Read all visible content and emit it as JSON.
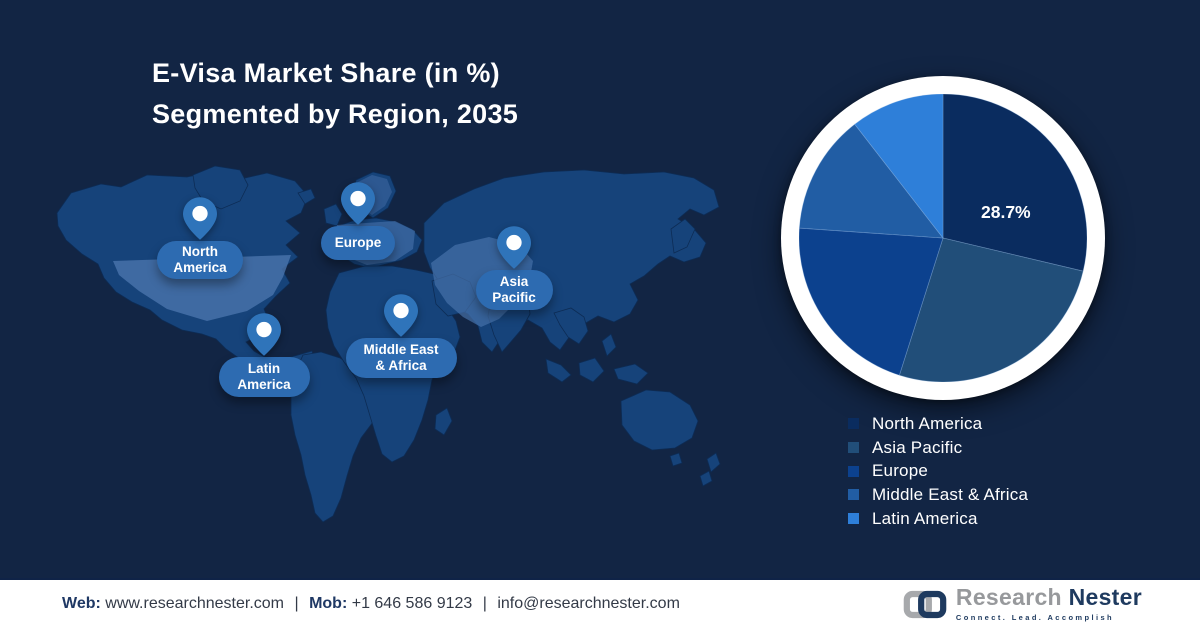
{
  "title": {
    "line1": "E-Visa Market Share (in %)",
    "line2": "Segmented by Region, 2035"
  },
  "map": {
    "pins": [
      {
        "id": "north-america",
        "label": "North\nAmerica"
      },
      {
        "id": "europe",
        "label": "Europe"
      },
      {
        "id": "asia-pacific",
        "label": "Asia\nPacific"
      },
      {
        "id": "latin-america",
        "label": "Latin\nAmerica"
      },
      {
        "id": "middle-east-africa",
        "label": "Middle East\n& Africa"
      }
    ]
  },
  "chart_data": {
    "type": "pie",
    "title": "E-Visa Market Share (in %) Segmented by Region, 2035",
    "start_angle_deg": 0,
    "direction": "clockwise",
    "legend_position": "bottom-right",
    "data_label": {
      "slice": "North America",
      "text": "28.7%"
    },
    "slices": [
      {
        "name": "North America",
        "value": 28.7,
        "color": "#0a2c5f",
        "labeled": true
      },
      {
        "name": "Asia Pacific",
        "value": 26.2,
        "color": "#214e79",
        "labeled": false
      },
      {
        "name": "Europe",
        "value": 21.2,
        "color": "#0c418e",
        "labeled": false
      },
      {
        "name": "Middle East & Africa",
        "value": 13.4,
        "color": "#215da4",
        "labeled": false
      },
      {
        "name": "Latin America",
        "value": 10.5,
        "color": "#2e7fd9",
        "labeled": false
      }
    ]
  },
  "footer": {
    "web_label": "Web:",
    "web_value": "www.researchnester.com",
    "sep1": "|",
    "mob_label": "Mob:",
    "mob_value": "+1 646 586 9123",
    "sep2": "|",
    "email": "info@researchnester.com"
  },
  "logo": {
    "part1": "Research",
    "part2": "Nester",
    "tagline": "Connect. Lead. Accomplish"
  },
  "colors": {
    "background": "#122544",
    "map_land": "#16437a",
    "map_highlight": "#4a74ad",
    "pin": "#2f74ba",
    "bubble": "#2d6bb1",
    "accent_navy": "#1f3864"
  }
}
